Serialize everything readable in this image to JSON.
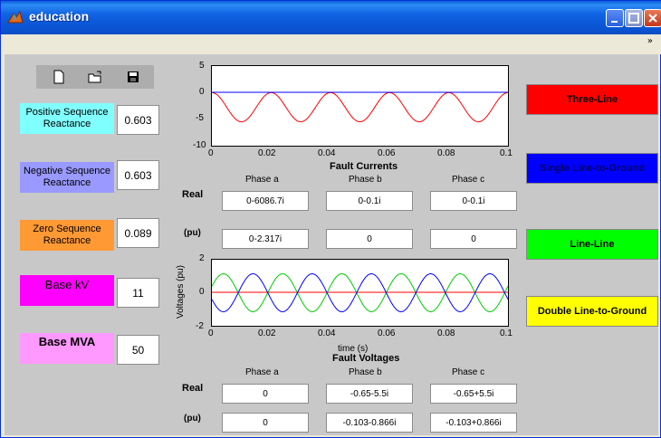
{
  "window": {
    "title": "education"
  },
  "toolbar": {
    "icons": [
      "new-file-icon",
      "open-folder-icon",
      "save-icon"
    ]
  },
  "parameters": {
    "positive_label": "Positive Sequence Reactance",
    "positive_value": "0.603",
    "negative_label": "Negative Sequence Reactance",
    "negative_value": "0.603",
    "zero_label": "Zero Sequence Reactance",
    "zero_value": "0.089",
    "basekv_label": "Base kV",
    "basekv_value": "11",
    "basemva_label": "Base MVA",
    "basemva_value": "50"
  },
  "currents_plot": {
    "y_ticks": [
      "5",
      "0",
      "-5",
      "-10"
    ],
    "x_ticks": [
      "0",
      "0.02",
      "0.04",
      "0.06",
      "0.08",
      "0.1"
    ],
    "title": "Fault Currents"
  },
  "currents_table": {
    "phase_a": "Phase a",
    "phase_b": "Phase b",
    "phase_c": "Phase c",
    "real_label": "Real",
    "pu_label": "(pu)",
    "real": [
      "0-6086.7i",
      "0-0.1i",
      "0-0.1i"
    ],
    "pu": [
      "0-2.317i",
      "0",
      "0"
    ]
  },
  "voltages_plot": {
    "y_ticks": [
      "2",
      "0",
      "-2"
    ],
    "x_ticks": [
      "0",
      "0.02",
      "0.04",
      "0.06",
      "0.08",
      "0.1"
    ],
    "ylabel": "Voltages (pu)",
    "xlabel": "time (s)",
    "title": "Fault Voltages"
  },
  "voltages_table": {
    "phase_a": "Phase a",
    "phase_b": "Phase b",
    "phase_c": "Phase c",
    "real_label": "Real",
    "pu_label": "(pu)",
    "real": [
      "0",
      "-0.65-5.5i",
      "-0.65+5.5i"
    ],
    "pu": [
      "0",
      "-0.103-0.866i",
      "-0.103+0.866i"
    ]
  },
  "fault_buttons": {
    "three_line": "Three-Line",
    "slg": "Single Line-to-Ground",
    "ll": "Line-Line",
    "dlg": "Double Line-to-Ground"
  },
  "colors": {
    "positive": "#80ffff",
    "negative": "#9999ff",
    "zero": "#ff9933",
    "basekv": "#ff00ff",
    "basemva": "#ff99ff",
    "three_line": "#ff0000",
    "slg": "#0000ff",
    "ll": "#00ff00",
    "dlg": "#ffff00"
  }
}
